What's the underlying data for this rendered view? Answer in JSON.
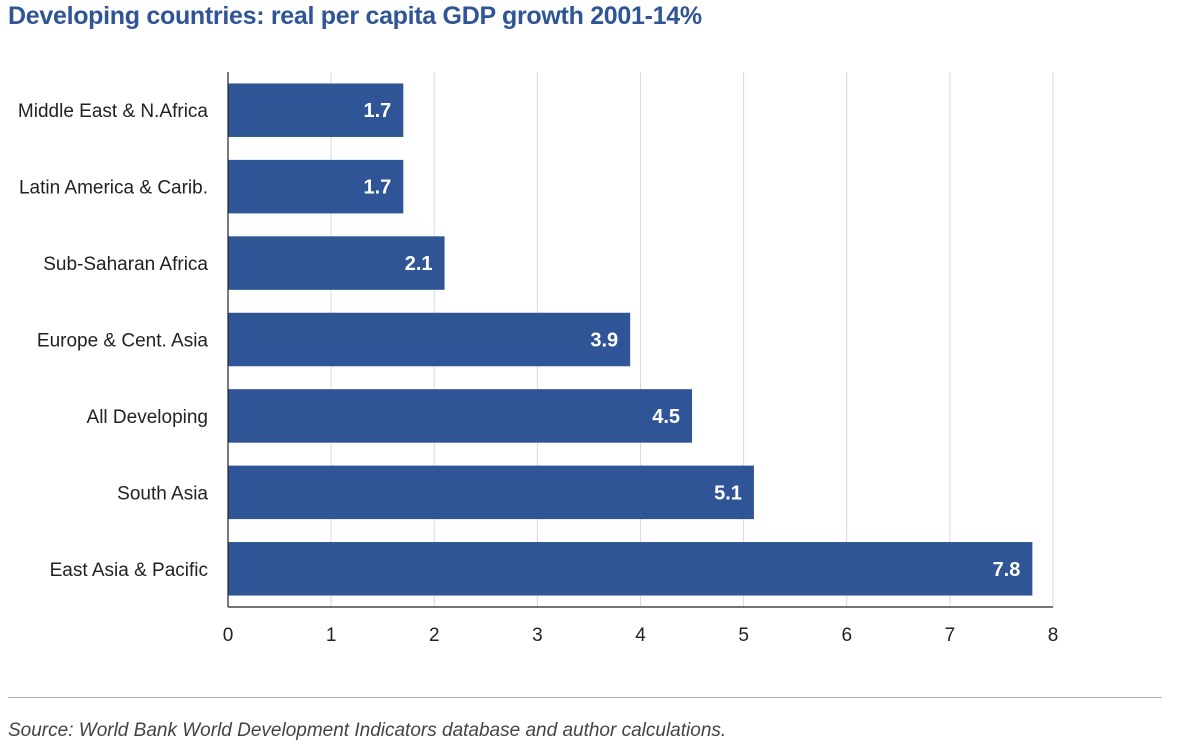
{
  "title": "Developing countries: real per capita GDP growth 2001-14%",
  "source": "Source: World Bank World Development Indicators database and author calculations.",
  "colors": {
    "title": "#2f5597",
    "bar": "#2f5597",
    "bar_label": "#ffffff",
    "grid": "#d9d9d9",
    "axis": "#222222"
  },
  "chart_data": {
    "type": "bar",
    "orientation": "horizontal",
    "title": "Developing countries: real per capita GDP growth 2001-14%",
    "xlabel": "",
    "ylabel": "",
    "categories": [
      "Middle East & N.Africa",
      "Latin America & Carib.",
      "Sub-Saharan Africa",
      "Europe & Cent. Asia",
      "All Developing",
      "South Asia",
      "East Asia & Pacific"
    ],
    "values": [
      1.7,
      1.7,
      2.1,
      3.9,
      4.5,
      5.1,
      7.8
    ],
    "data_labels": [
      "1.7",
      "1.7",
      "2.1",
      "3.9",
      "4.5",
      "5.1",
      "7.8"
    ],
    "xlim": [
      0,
      8
    ],
    "xticks": [
      "0",
      "1",
      "2",
      "3",
      "4",
      "5",
      "6",
      "7",
      "8"
    ],
    "grid": true,
    "legend": "none"
  }
}
